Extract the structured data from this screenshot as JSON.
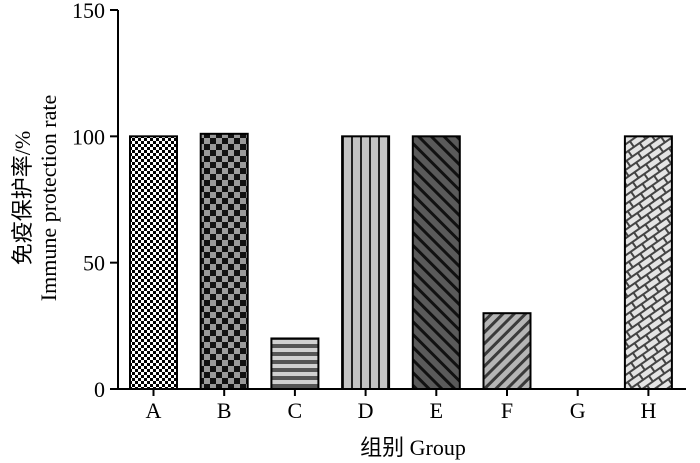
{
  "chart_data": {
    "type": "bar",
    "categories": [
      "A",
      "B",
      "C",
      "D",
      "E",
      "F",
      "G",
      "H"
    ],
    "values": [
      100,
      101,
      20,
      100,
      100,
      30,
      0,
      100
    ],
    "xlabel": "组别 Group",
    "ylabel_line1": "免疫保护率/%",
    "ylabel_line2": "Immune protection rate",
    "ylim": [
      0,
      150
    ],
    "yticks": [
      0,
      50,
      100,
      150
    ],
    "legend": "none",
    "grid": false,
    "bar_patterns": [
      "fine-check",
      "checkerboard",
      "horizontal-stripes",
      "vertical-stripes",
      "diagonal-dark",
      "diagonal-light",
      "none",
      "brick"
    ],
    "colors": {
      "black": "#000000",
      "dark_gray": "#3a3a3a",
      "mid_gray": "#7a7a7a",
      "light_gray": "#c8c8c8",
      "white": "#ffffff"
    }
  }
}
